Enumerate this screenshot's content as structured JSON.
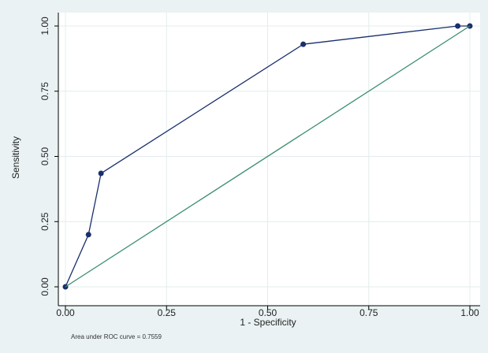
{
  "chart_data": {
    "type": "line",
    "title": "",
    "xlabel": "1 - Specificity",
    "ylabel": "Sensitivity",
    "xlim": [
      0,
      1
    ],
    "ylim": [
      0,
      1
    ],
    "x_ticks": [
      "0.00",
      "0.25",
      "0.50",
      "0.75",
      "1.00"
    ],
    "y_ticks": [
      "0.00",
      "0.25",
      "0.50",
      "0.75",
      "1.00"
    ],
    "grid": true,
    "series": [
      {
        "x": [
          0.0,
          0.057,
          0.088,
          0.588,
          0.97,
          1.0
        ],
        "y": [
          0.0,
          0.2,
          0.435,
          0.93,
          1.0,
          1.0
        ],
        "color": "#1a2f6d",
        "markers": true
      },
      {
        "x": [
          0,
          1
        ],
        "y": [
          0,
          1
        ],
        "color": "#3a8f6f",
        "markers": false
      }
    ],
    "annotation": "Area under ROC curve = 0.7559"
  }
}
